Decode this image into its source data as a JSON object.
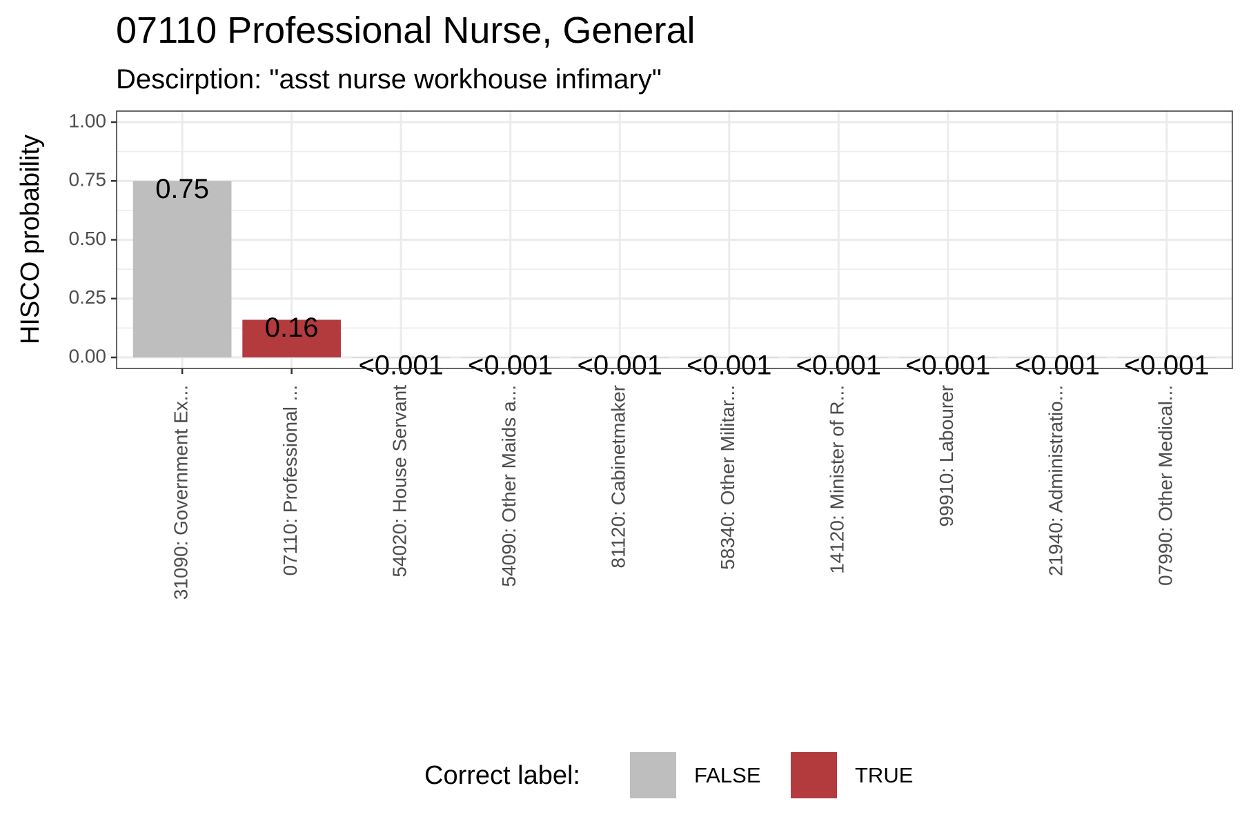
{
  "chart_data": {
    "type": "bar",
    "title": "07110 Professional Nurse, General",
    "subtitle": "Descirption: \"asst nurse workhouse infimary\"",
    "ylabel": "HISCO probability",
    "xlabel": "",
    "ylim": [
      0,
      1.0
    ],
    "yticks": [
      "0.00",
      "0.25",
      "0.50",
      "0.75",
      "1.00"
    ],
    "ytick_values": [
      0,
      0.25,
      0.5,
      0.75,
      1.0
    ],
    "grid": true,
    "categories": [
      "31090: Government Ex...",
      "07110: Professional ...",
      "54020: House Servant",
      "54090: Other Maids a...",
      "81120: Cabinetmaker",
      "58340: Other Militar...",
      "14120: Minister of R...",
      "99910: Labourer",
      "21940: Administratio...",
      "07990: Other Medical..."
    ],
    "values": [
      0.75,
      0.16,
      0.0,
      0.0,
      0.0,
      0.0,
      0.0,
      0.0,
      0.0,
      0.0
    ],
    "data_labels": [
      "0.75",
      "0.16",
      "<0.001",
      "<0.001",
      "<0.001",
      "<0.001",
      "<0.001",
      "<0.001",
      "<0.001",
      "<0.001"
    ],
    "correct": [
      false,
      true,
      false,
      false,
      false,
      false,
      false,
      false,
      false,
      false
    ],
    "legend": {
      "title": "Correct label:",
      "placement": "bottom",
      "items": [
        {
          "label": "FALSE",
          "color": "#bebebe"
        },
        {
          "label": "TRUE",
          "color": "#b33b3d"
        }
      ]
    },
    "colors": {
      "false": "#bebebe",
      "true": "#b33b3d"
    }
  }
}
